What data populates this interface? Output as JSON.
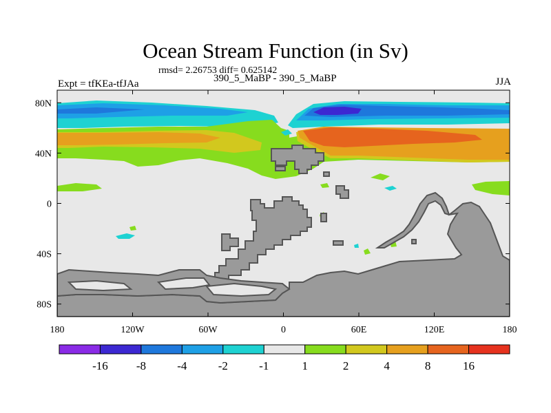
{
  "chart_data": {
    "type": "heatmap",
    "title": "Ocean Stream Function (in Sv)",
    "stats_text": "rmsd= 2.26753 diff= 0.625142",
    "left_label": "Expt = tfKEa-tfJAa",
    "subtitle": "390_5_MaBP - 390_5_MaBP",
    "right_label": "JJA",
    "x_range": [
      -180,
      180
    ],
    "y_range": [
      -90,
      90
    ],
    "x_ticks": [
      {
        "value": -180,
        "label": "180"
      },
      {
        "value": -120,
        "label": "120W"
      },
      {
        "value": -60,
        "label": "60W"
      },
      {
        "value": 0,
        "label": "0"
      },
      {
        "value": 60,
        "label": "60E"
      },
      {
        "value": 120,
        "label": "120E"
      },
      {
        "value": 180,
        "label": "180"
      }
    ],
    "y_ticks": [
      {
        "value": 80,
        "label": "80N"
      },
      {
        "value": 40,
        "label": "40N"
      },
      {
        "value": 0,
        "label": "0"
      },
      {
        "value": -40,
        "label": "40S"
      },
      {
        "value": -80,
        "label": "80S"
      }
    ],
    "colorbar": {
      "colors": [
        "#8a2be6",
        "#3c28d2",
        "#1e78dc",
        "#1ea0e6",
        "#1ed2d2",
        "#e8e8e8",
        "#87dc1e",
        "#d2c81e",
        "#e6a01e",
        "#e6641e",
        "#e6321e"
      ],
      "labels": [
        "-16",
        "-8",
        "-4",
        "-2",
        "-1",
        "1",
        "2",
        "4",
        "8",
        "16"
      ]
    },
    "colors": {
      "land": "#9a9a9a",
      "land_edge": "#555555",
      "ocean_zero": "#e8e8e8"
    }
  }
}
